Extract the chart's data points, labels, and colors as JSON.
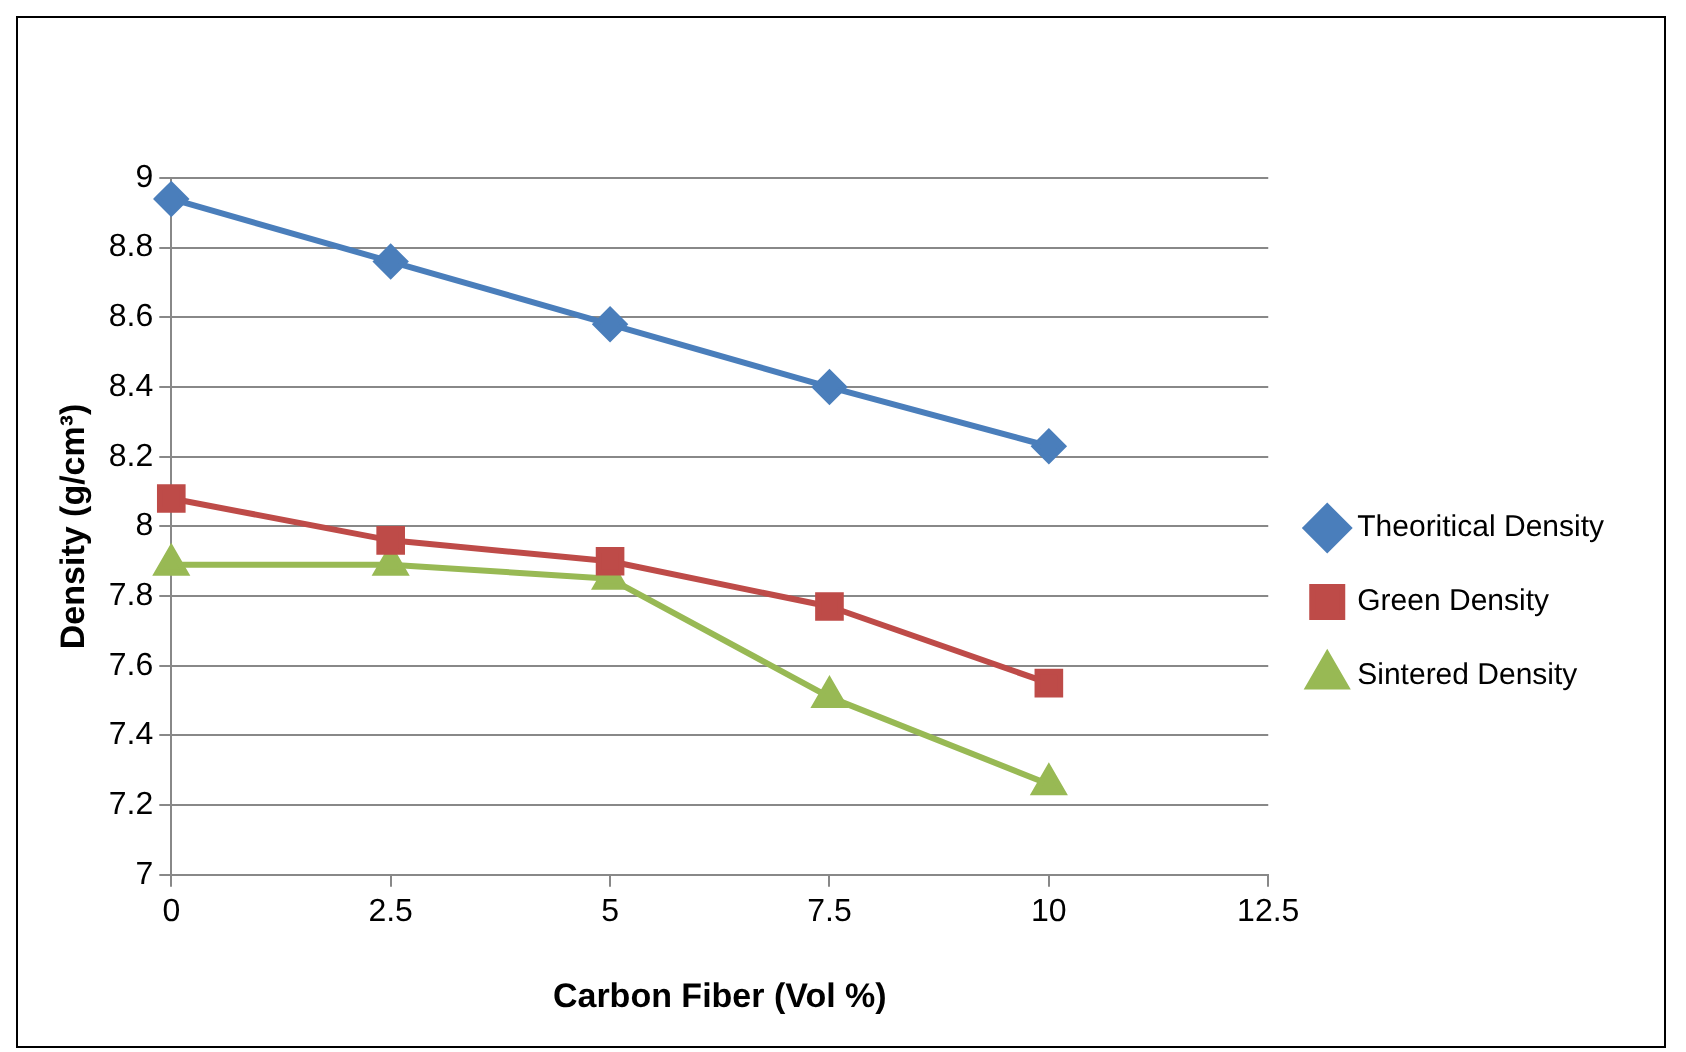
{
  "chart_data": {
    "type": "line",
    "xlabel": "Carbon Fiber (Vol %)",
    "ylabel": "Density (g/cm³)",
    "x": [
      0,
      2.5,
      5,
      7.5,
      10
    ],
    "xlim": [
      0,
      12.5
    ],
    "xticks": [
      0,
      2.5,
      5,
      7.5,
      10,
      12.5
    ],
    "ylim": [
      7,
      9
    ],
    "yticks": [
      7,
      7.2,
      7.4,
      7.6,
      7.8,
      8,
      8.2,
      8.4,
      8.6,
      8.8,
      9
    ],
    "grid": "y",
    "legend": "right",
    "series": [
      {
        "name": "Theoritical Density",
        "color": "#4a7ebb",
        "marker": "diamond",
        "values": [
          8.94,
          8.76,
          8.58,
          8.4,
          8.23
        ]
      },
      {
        "name": "Green Density",
        "color": "#be4b48",
        "marker": "square",
        "values": [
          8.08,
          7.96,
          7.9,
          7.77,
          7.55
        ]
      },
      {
        "name": "Sintered Density",
        "color": "#98b954",
        "marker": "triangle",
        "values": [
          7.89,
          7.89,
          7.85,
          7.51,
          7.26
        ]
      }
    ]
  }
}
